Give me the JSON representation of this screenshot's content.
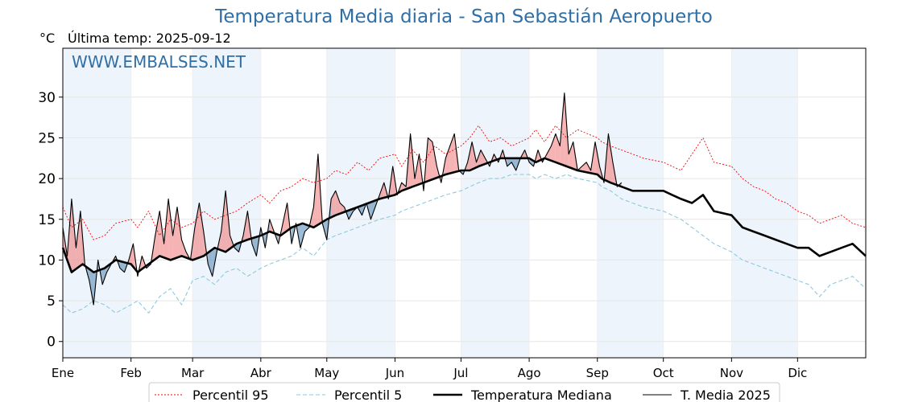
{
  "header": {
    "title": "Temperatura Media diaria - San Sebastián Aeropuerto",
    "unit": "°C",
    "last_temp": "Última temp: 2025-09-12",
    "watermark": "WWW.EMBALSES.NET"
  },
  "colors": {
    "title": "#2f6fa6",
    "p95": "#ff0000",
    "p5": "#8ec9de",
    "median": "#000000",
    "current": "#000000",
    "above_fill": "#f08080",
    "below_fill": "#5b8db8",
    "month_band": "#eef4fb"
  },
  "chart_data": {
    "type": "line",
    "title": "Temperatura Media diaria - San Sebastián Aeropuerto",
    "ylabel": "°C",
    "xlabel": "",
    "ylim": [
      -2,
      36
    ],
    "yticks": [
      0,
      5,
      10,
      15,
      20,
      25,
      30
    ],
    "xlim": [
      1,
      366
    ],
    "grid": true,
    "legend_position": "bottom",
    "months": [
      "Ene",
      "Feb",
      "Mar",
      "Abr",
      "May",
      "Jun",
      "Jul",
      "Ago",
      "Sep",
      "Oct",
      "Nov",
      "Dic"
    ],
    "month_start_days": [
      1,
      32,
      60,
      91,
      121,
      152,
      182,
      213,
      244,
      274,
      305,
      335
    ],
    "series": [
      {
        "name": "Percentil 95",
        "style": "dotted-red",
        "days": [
          1,
          5,
          10,
          15,
          20,
          25,
          32,
          35,
          40,
          45,
          50,
          55,
          60,
          65,
          70,
          75,
          80,
          85,
          91,
          95,
          100,
          105,
          110,
          115,
          121,
          125,
          130,
          135,
          140,
          145,
          152,
          155,
          160,
          165,
          170,
          175,
          182,
          186,
          190,
          195,
          200,
          205,
          213,
          216,
          220,
          225,
          230,
          235,
          244,
          246,
          250,
          255,
          260,
          265,
          274,
          278,
          282,
          287,
          292,
          297,
          305,
          310,
          315,
          320,
          325,
          330,
          335,
          340,
          345,
          350,
          355,
          360,
          366
        ],
        "values": [
          16.5,
          14.0,
          15.0,
          12.5,
          13.0,
          14.5,
          15.0,
          14.0,
          16.0,
          13.0,
          15.0,
          14.0,
          14.5,
          16.0,
          15.0,
          15.5,
          16.0,
          17.0,
          18.0,
          17.0,
          18.5,
          19.0,
          20.0,
          19.5,
          20.0,
          21.0,
          20.5,
          22.0,
          21.0,
          22.5,
          23.0,
          21.5,
          23.5,
          22.0,
          24.0,
          23.0,
          24.0,
          25.0,
          26.5,
          24.5,
          25.0,
          24.0,
          25.0,
          26.0,
          24.5,
          26.5,
          25.0,
          26.0,
          25.0,
          24.5,
          24.0,
          23.5,
          23.0,
          22.5,
          22.0,
          21.5,
          21.0,
          23.0,
          25.0,
          22.0,
          21.5,
          20.0,
          19.0,
          18.5,
          17.5,
          17.0,
          16.0,
          15.5,
          14.5,
          15.0,
          15.5,
          14.5,
          14.0
        ]
      },
      {
        "name": "Percentil 5",
        "style": "dashed-lightblue",
        "days": [
          1,
          5,
          10,
          15,
          20,
          25,
          32,
          35,
          40,
          45,
          50,
          55,
          60,
          65,
          70,
          75,
          80,
          85,
          91,
          95,
          100,
          105,
          110,
          115,
          121,
          125,
          130,
          135,
          140,
          145,
          152,
          155,
          160,
          165,
          170,
          175,
          182,
          186,
          190,
          195,
          200,
          205,
          213,
          216,
          220,
          225,
          230,
          235,
          244,
          246,
          250,
          255,
          260,
          265,
          274,
          278,
          282,
          287,
          292,
          297,
          305,
          310,
          315,
          320,
          325,
          330,
          335,
          340,
          345,
          350,
          355,
          360,
          366
        ],
        "values": [
          4.5,
          3.5,
          4.0,
          5.0,
          4.5,
          3.5,
          4.5,
          5.0,
          3.5,
          5.5,
          6.5,
          4.5,
          7.5,
          8.0,
          7.0,
          8.5,
          9.0,
          8.0,
          9.0,
          9.5,
          10.0,
          10.5,
          11.5,
          10.5,
          12.5,
          13.0,
          13.5,
          14.0,
          14.5,
          15.0,
          15.5,
          16.0,
          16.5,
          17.0,
          17.5,
          18.0,
          18.5,
          19.0,
          19.5,
          20.0,
          20.0,
          20.5,
          20.5,
          20.0,
          20.5,
          20.0,
          20.5,
          20.0,
          19.5,
          19.0,
          18.5,
          17.5,
          17.0,
          16.5,
          16.0,
          15.5,
          15.0,
          14.0,
          13.0,
          12.0,
          11.0,
          10.0,
          9.5,
          9.0,
          8.5,
          8.0,
          7.5,
          7.0,
          5.5,
          7.0,
          7.5,
          8.0,
          6.5
        ]
      },
      {
        "name": "Temperatura Mediana",
        "style": "thick-black",
        "days": [
          1,
          5,
          10,
          15,
          20,
          25,
          32,
          35,
          40,
          45,
          50,
          55,
          60,
          65,
          70,
          75,
          80,
          85,
          91,
          95,
          100,
          105,
          110,
          115,
          121,
          125,
          130,
          135,
          140,
          145,
          152,
          155,
          160,
          165,
          170,
          175,
          182,
          186,
          190,
          195,
          200,
          205,
          213,
          216,
          220,
          225,
          230,
          235,
          244,
          246,
          250,
          255,
          260,
          265,
          274,
          278,
          282,
          287,
          292,
          297,
          305,
          310,
          315,
          320,
          325,
          330,
          335,
          340,
          345,
          350,
          355,
          360,
          366
        ],
        "values": [
          11.5,
          8.5,
          9.5,
          8.5,
          9.0,
          10.0,
          9.5,
          8.5,
          9.5,
          10.5,
          10.0,
          10.5,
          10.0,
          10.5,
          11.5,
          11.0,
          12.0,
          12.5,
          13.0,
          13.5,
          13.0,
          14.0,
          14.5,
          14.0,
          15.0,
          15.5,
          16.0,
          16.5,
          17.0,
          17.5,
          18.0,
          18.5,
          19.0,
          19.5,
          20.0,
          20.5,
          21.0,
          21.0,
          21.5,
          22.0,
          22.5,
          22.5,
          22.5,
          22.0,
          22.5,
          22.0,
          21.5,
          21.0,
          20.5,
          20.0,
          19.5,
          19.0,
          18.5,
          18.5,
          18.5,
          18.0,
          17.5,
          17.0,
          18.0,
          16.0,
          15.5,
          14.0,
          13.5,
          13.0,
          12.5,
          12.0,
          11.5,
          11.5,
          10.5,
          11.0,
          11.5,
          12.0,
          10.5
        ]
      },
      {
        "name": "T. Media 2025",
        "style": "thin-black",
        "days": [
          1,
          3,
          5,
          7,
          9,
          11,
          13,
          15,
          17,
          19,
          21,
          23,
          25,
          27,
          29,
          31,
          33,
          35,
          37,
          39,
          41,
          43,
          45,
          47,
          49,
          51,
          53,
          55,
          57,
          59,
          61,
          63,
          65,
          67,
          69,
          71,
          73,
          75,
          77,
          79,
          81,
          83,
          85,
          87,
          89,
          91,
          93,
          95,
          97,
          99,
          101,
          103,
          105,
          107,
          109,
          111,
          113,
          115,
          117,
          119,
          121,
          123,
          125,
          127,
          129,
          131,
          133,
          135,
          137,
          139,
          141,
          143,
          145,
          147,
          149,
          151,
          153,
          155,
          157,
          159,
          161,
          163,
          165,
          167,
          169,
          171,
          173,
          175,
          177,
          179,
          181,
          183,
          185,
          187,
          189,
          191,
          193,
          195,
          197,
          199,
          201,
          203,
          205,
          207,
          209,
          211,
          213,
          215,
          217,
          219,
          221,
          223,
          225,
          227,
          229,
          231,
          233,
          235,
          237,
          239,
          241,
          243,
          245,
          247,
          249,
          251,
          253,
          255
        ],
        "values": [
          14.0,
          10.5,
          17.5,
          11.5,
          16.0,
          9.5,
          7.5,
          4.5,
          10.0,
          7.0,
          8.5,
          9.5,
          10.5,
          9.0,
          8.5,
          10.0,
          12.0,
          8.0,
          10.5,
          9.0,
          9.5,
          13.0,
          16.0,
          12.0,
          17.5,
          13.0,
          16.5,
          12.5,
          11.0,
          10.0,
          14.0,
          17.0,
          13.5,
          9.5,
          8.0,
          11.0,
          13.5,
          18.5,
          13.0,
          11.5,
          11.0,
          13.0,
          16.0,
          12.0,
          10.5,
          14.0,
          11.5,
          15.0,
          13.5,
          12.0,
          14.5,
          17.0,
          12.0,
          14.5,
          11.5,
          13.5,
          14.0,
          16.5,
          23.0,
          14.5,
          12.5,
          17.5,
          18.5,
          17.0,
          16.5,
          15.0,
          16.0,
          16.5,
          15.5,
          17.0,
          15.0,
          16.5,
          18.0,
          19.5,
          17.5,
          21.5,
          18.0,
          19.5,
          19.0,
          25.5,
          20.0,
          23.0,
          18.5,
          25.0,
          24.5,
          21.5,
          19.5,
          22.5,
          24.0,
          25.5,
          21.0,
          20.5,
          22.0,
          24.5,
          22.0,
          23.5,
          22.5,
          21.5,
          23.0,
          22.0,
          23.5,
          21.5,
          22.0,
          21.0,
          22.5,
          23.5,
          22.0,
          21.5,
          23.5,
          22.0,
          23.0,
          24.0,
          25.5,
          24.0,
          30.5,
          23.0,
          24.5,
          21.0,
          21.5,
          22.0,
          21.0,
          24.5,
          21.5,
          19.5,
          25.5,
          22.0,
          19.0,
          19.5
        ]
      }
    ]
  },
  "legend": {
    "items": [
      {
        "label": "Percentil 95",
        "style": "dotted-red"
      },
      {
        "label": "Percentil 5",
        "style": "dashed-lightblue"
      },
      {
        "label": "Temperatura Mediana",
        "style": "thick-black"
      },
      {
        "label": "T. Media 2025",
        "style": "thin-black"
      }
    ]
  }
}
